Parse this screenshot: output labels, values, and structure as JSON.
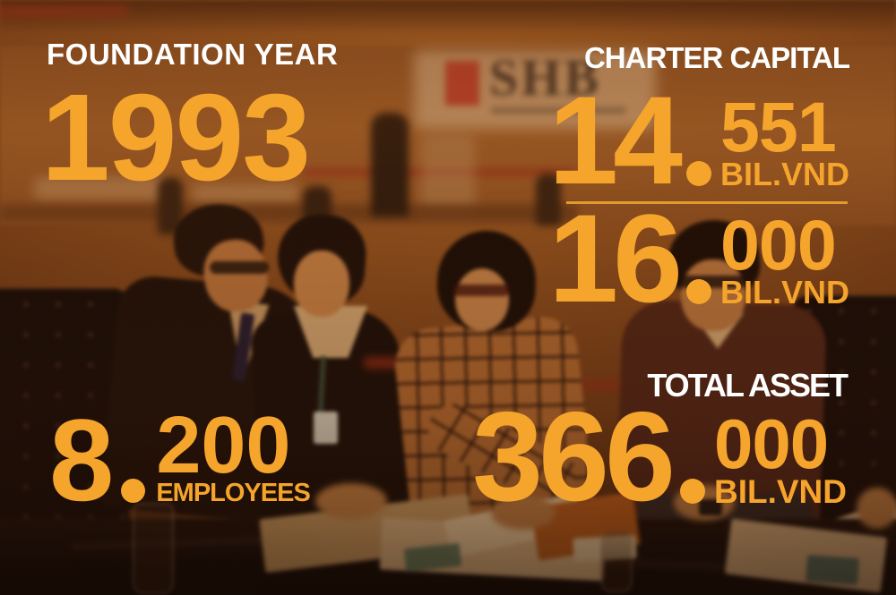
{
  "colors": {
    "accent": "#F5A42C",
    "label": "#FFFFFF",
    "divider": "#E09D2E",
    "sign_red": "#B5301F"
  },
  "photo": {
    "sign_text": "SHB"
  },
  "stats": {
    "foundation_year": {
      "label": "FOUNDATION YEAR",
      "value": "1993"
    },
    "charter_capital": {
      "label": "CHARTER CAPITAL",
      "value_top": {
        "int": "14",
        "fraction": "551",
        "unit": "BIL.VND"
      },
      "value_bottom": {
        "int": "16",
        "fraction": "000",
        "unit": "BIL.VND"
      }
    },
    "total_asset": {
      "label": "TOTAL ASSET",
      "value": {
        "int": "366",
        "fraction": "000",
        "unit": "BIL.VND"
      }
    },
    "employees": {
      "value": {
        "int": "8",
        "fraction": "200",
        "unit": "EMPLOYEES"
      }
    }
  }
}
